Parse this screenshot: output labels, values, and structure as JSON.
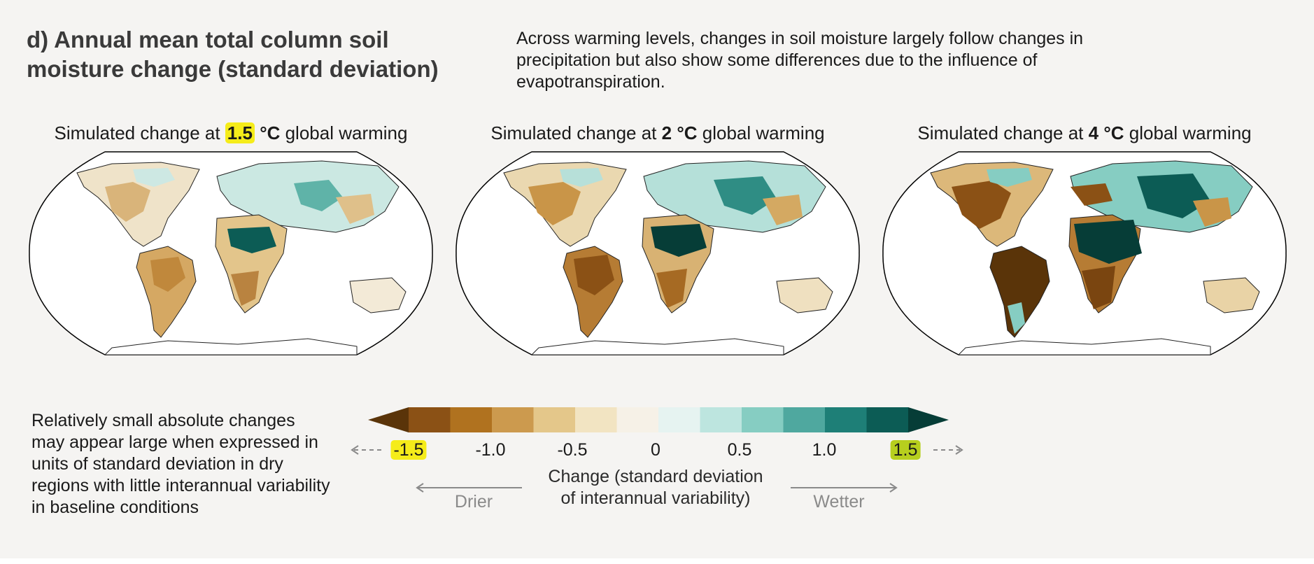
{
  "title": "d) Annual mean total column soil moisture change (standard deviation)",
  "intro": "Across warming levels, changes in soil moisture largely follow changes in precipitation but also show some differences due to the influence of evapotranspiration.",
  "maps": [
    {
      "prefix": "Simulated change at ",
      "level": "1.5",
      "unit": "°C",
      "suffix": " global warming",
      "highlighted": true
    },
    {
      "prefix": "Simulated change at ",
      "level": "2",
      "unit": "°C",
      "suffix": " global warming",
      "highlighted": false
    },
    {
      "prefix": "Simulated change at ",
      "level": "4",
      "unit": "°C",
      "suffix": " global warming",
      "highlighted": false
    }
  ],
  "note": "Relatively small absolute changes may appear large when expressed in units of standard deviation in dry regions with little interannual variability in baseline conditions",
  "colorbar": {
    "ticks": [
      "-1.5",
      "-1.0",
      "-0.5",
      "0",
      "0.5",
      "1.0",
      "1.5"
    ],
    "label_line1": "Change (standard deviation",
    "label_line2": "of interannual variability)",
    "drier": "Drier",
    "wetter": "Wetter",
    "colors": [
      "#5a3409",
      "#8b5115",
      "#b0721f",
      "#cc9a4e",
      "#e4c78a",
      "#f2e4c2",
      "#f6f1e7",
      "#e6f3f1",
      "#bde5df",
      "#86cdc2",
      "#4fa89f",
      "#1e7f77",
      "#0c5c55",
      "#063d37"
    ],
    "highlight_low": "#f5ec1a",
    "highlight_high": "#b7cf1e"
  }
}
